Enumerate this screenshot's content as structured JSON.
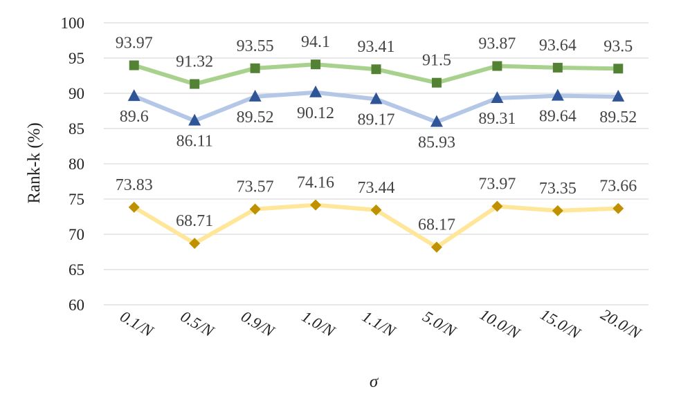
{
  "chart_data": {
    "type": "line",
    "title": "",
    "xlabel": "σ",
    "ylabel": "Rank-k (%)",
    "ylim": [
      60,
      100
    ],
    "ytick_step": 5,
    "grid": true,
    "legend": "none",
    "categories": [
      "0.1/N",
      "0.5/N",
      "0.9/N",
      "1.0/N",
      "1.1/N",
      "5.0/N",
      "10.0/N",
      "15.0/N",
      "20.0/N"
    ],
    "series": [
      {
        "name": "series-green",
        "marker": "square",
        "line_color": "#a9d18e",
        "marker_color": "#548235",
        "label_position": "above",
        "values": [
          93.97,
          91.32,
          93.55,
          94.1,
          93.41,
          91.5,
          93.87,
          93.64,
          93.5
        ],
        "labels": [
          "93.97",
          "91.32",
          "93.55",
          "94.1",
          "93.41",
          "91.5",
          "93.87",
          "93.64",
          "93.5"
        ]
      },
      {
        "name": "series-blue",
        "marker": "triangle",
        "line_color": "#b4c7e7",
        "marker_color": "#2f5597",
        "label_position": "below",
        "values": [
          89.6,
          86.11,
          89.52,
          90.12,
          89.17,
          85.93,
          89.31,
          89.64,
          89.52
        ],
        "labels": [
          "89.6",
          "86.11",
          "89.52",
          "90.12",
          "89.17",
          "85.93",
          "89.31",
          "89.64",
          "89.52"
        ]
      },
      {
        "name": "series-yellow",
        "marker": "diamond",
        "line_color": "#ffe699",
        "marker_color": "#bf9000",
        "label_position": "above",
        "values": [
          73.83,
          68.71,
          73.57,
          74.16,
          73.44,
          68.17,
          73.97,
          73.35,
          73.66
        ],
        "labels": [
          "73.83",
          "68.71",
          "73.57",
          "74.16",
          "73.44",
          "68.17",
          "73.97",
          "73.35",
          "73.66"
        ]
      }
    ]
  }
}
